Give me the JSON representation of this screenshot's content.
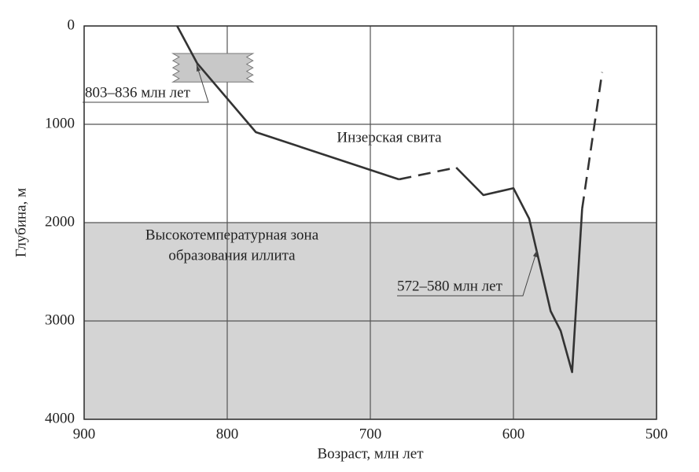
{
  "chart_data": {
    "type": "line",
    "x_label": "Возраст, млн лет",
    "y_label": "Глубина, м",
    "xlim": [
      900,
      500
    ],
    "xticks": [
      900,
      800,
      700,
      600,
      500
    ],
    "ylim": [
      4000,
      0
    ],
    "yticks": [
      0,
      1000,
      2000,
      3000,
      4000
    ],
    "grid": true,
    "color": "#333333",
    "series": [
      {
        "x": [
          835,
          821,
          780,
          680
        ],
        "values": [
          0,
          380,
          1080,
          1560
        ],
        "dashed": false
      },
      {
        "x": [
          680,
          640
        ],
        "values": [
          1560,
          1440
        ],
        "dashed": true
      },
      {
        "x": [
          640,
          621,
          600,
          589,
          574,
          567,
          559,
          552
        ],
        "values": [
          1440,
          1720,
          1650,
          1960,
          2900,
          3100,
          3520,
          1860
        ],
        "dashed": false
      },
      {
        "x": [
          552,
          538
        ],
        "values": [
          1860,
          470
        ],
        "dashed": true
      }
    ],
    "zone": {
      "text": [
        "Высокотемпературная зона",
        "образования иллита"
      ],
      "y_range": [
        2000,
        4000
      ],
      "color": "#d4d4d4"
    },
    "annotations": [
      {
        "text": "803–836 млн лет",
        "x_range": [
          838,
          782
        ],
        "y_range": [
          280,
          570
        ]
      },
      {
        "text": "572–580 млн лет"
      },
      {
        "text": "Инзерская свита"
      }
    ]
  }
}
